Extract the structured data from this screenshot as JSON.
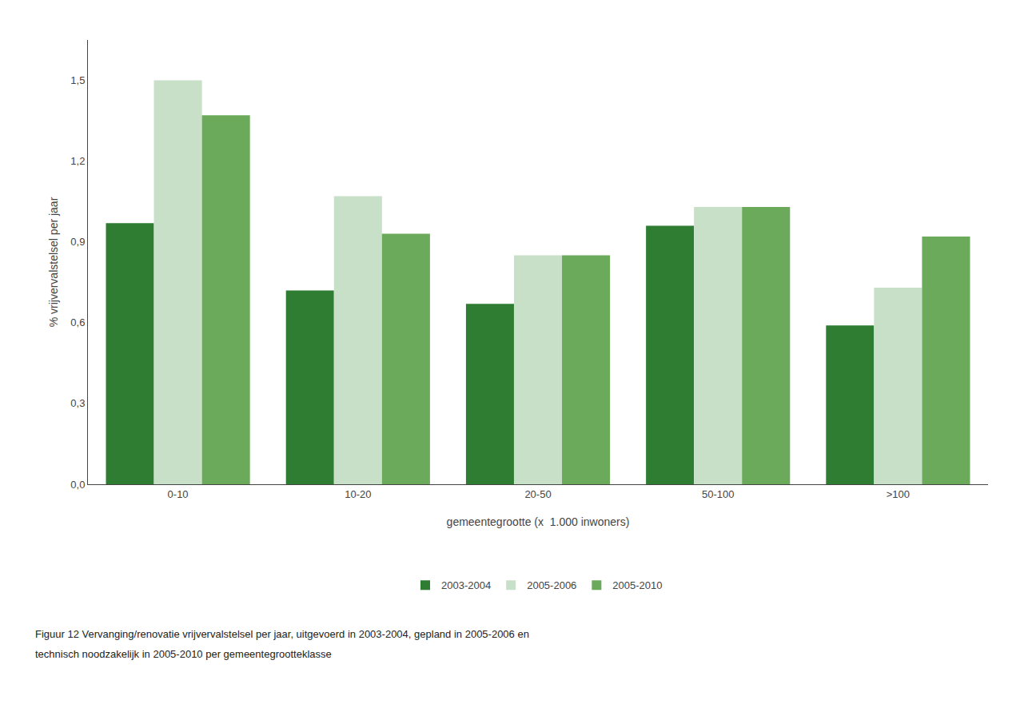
{
  "chart_data": {
    "type": "bar",
    "xlabel": "gemeentegrootte (x  1.000 inwoners)",
    "ylabel": "% vrijvervalstelsel per jaar",
    "categories": [
      "0-10",
      "10-20",
      "20-50",
      "50-100",
      ">100"
    ],
    "series": [
      {
        "name": "2003-2004",
        "color": "#2e7d32",
        "values": [
          0.97,
          0.72,
          0.67,
          0.96,
          0.59
        ]
      },
      {
        "name": "2005-2006",
        "color": "#c8dfc8",
        "values": [
          1.5,
          1.07,
          0.85,
          1.03,
          0.73
        ]
      },
      {
        "name": "2005-2010",
        "color": "#6aaa5a",
        "values": [
          1.37,
          0.93,
          0.85,
          1.03,
          0.92
        ]
      }
    ],
    "ylim": [
      0.0,
      1.65
    ],
    "yticks": [
      {
        "value": 0.0,
        "label": "0,0"
      },
      {
        "value": 0.3,
        "label": "0,3"
      },
      {
        "value": 0.6,
        "label": "0,6"
      },
      {
        "value": 0.9,
        "label": "0,9"
      },
      {
        "value": 1.2,
        "label": "1,2"
      },
      {
        "value": 1.5,
        "label": "1,5"
      }
    ],
    "grid": false,
    "legend": "bottom",
    "annotations": [
      "Figuur 12 Vervanging/renovatie vrijvervalstelsel per jaar, uitgevoerd in 2003-2004, gepland in 2005-2006 en",
      "technisch noodzakelijk in 2005-2010 per gemeentegrootteklasse"
    ]
  }
}
